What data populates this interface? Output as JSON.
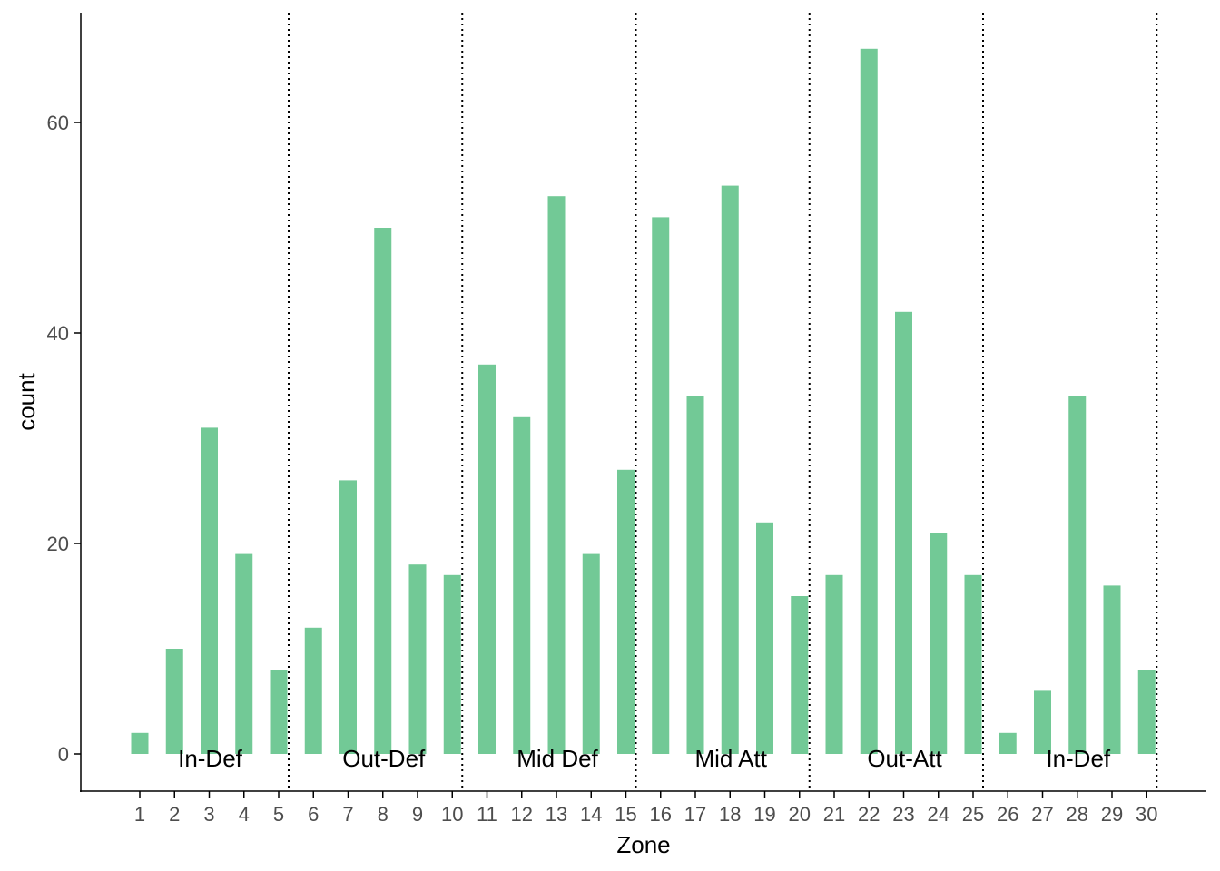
{
  "colors": {
    "bar": "#72c996",
    "axis": "#000000",
    "tick_text": "#4d4d4d",
    "separator": "#000000"
  },
  "chart_data": {
    "type": "bar",
    "title": "",
    "xlabel": "Zone",
    "ylabel": "count",
    "categories": [
      "1",
      "2",
      "3",
      "4",
      "5",
      "6",
      "7",
      "8",
      "9",
      "10",
      "11",
      "12",
      "13",
      "14",
      "15",
      "16",
      "17",
      "18",
      "19",
      "20",
      "21",
      "22",
      "23",
      "24",
      "25",
      "26",
      "27",
      "28",
      "29",
      "30"
    ],
    "values": [
      2,
      10,
      31,
      19,
      8,
      12,
      26,
      50,
      18,
      17,
      37,
      32,
      53,
      19,
      27,
      51,
      34,
      54,
      22,
      15,
      17,
      67,
      42,
      21,
      17,
      2,
      6,
      34,
      16,
      8
    ],
    "ylim": [
      0,
      70
    ],
    "yticks": [
      0,
      20,
      40,
      60
    ],
    "grid": false,
    "separators_after": [
      5,
      10,
      15,
      20,
      25,
      30
    ],
    "zone_groups": [
      {
        "label": "In-Def",
        "from": 1,
        "to": 5
      },
      {
        "label": "Out-Def",
        "from": 6,
        "to": 10
      },
      {
        "label": "Mid Def",
        "from": 11,
        "to": 15
      },
      {
        "label": "Mid Att",
        "from": 16,
        "to": 20
      },
      {
        "label": "Out-Att",
        "from": 21,
        "to": 25
      },
      {
        "label": "In-Def",
        "from": 26,
        "to": 30
      }
    ]
  }
}
